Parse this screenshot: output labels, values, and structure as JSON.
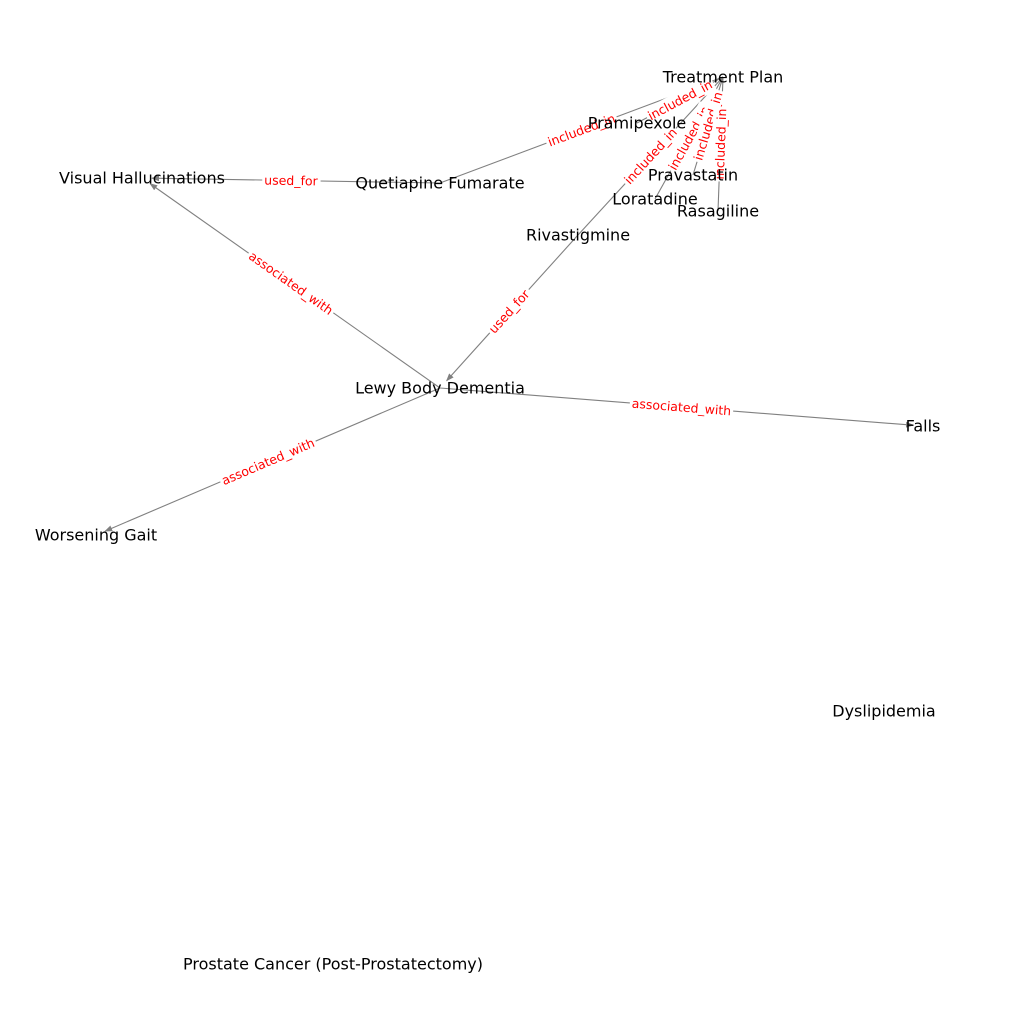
{
  "graph": {
    "nodes": [
      {
        "id": "treatment_plan",
        "label": "Treatment Plan"
      },
      {
        "id": "pramipexole",
        "label": "Pramipexole"
      },
      {
        "id": "visual_hallucinations",
        "label": "Visual Hallucinations"
      },
      {
        "id": "quetiapine",
        "label": "Quetiapine Fumarate"
      },
      {
        "id": "pravastatin",
        "label": "Pravastatin"
      },
      {
        "id": "loratadine",
        "label": "Loratadine"
      },
      {
        "id": "rasagiline",
        "label": "Rasagiline"
      },
      {
        "id": "rivastigmine",
        "label": "Rivastigmine"
      },
      {
        "id": "lewy_body_dementia",
        "label": "Lewy Body Dementia"
      },
      {
        "id": "falls",
        "label": "Falls"
      },
      {
        "id": "worsening_gait",
        "label": "Worsening Gait"
      },
      {
        "id": "dyslipidemia",
        "label": "Dyslipidemia"
      },
      {
        "id": "prostate_cancer",
        "label": "Prostate Cancer (Post-Prostatectomy)"
      }
    ],
    "edges": [
      {
        "source": "quetiapine",
        "target": "treatment_plan",
        "label": "included_in",
        "arrow": false
      },
      {
        "source": "pramipexole",
        "target": "treatment_plan",
        "label": "included_in",
        "arrow": false
      },
      {
        "source": "rivastigmine",
        "target": "treatment_plan",
        "label": "included_in",
        "arrow": false
      },
      {
        "source": "loratadine",
        "target": "treatment_plan",
        "label": "included_in",
        "arrow": false
      },
      {
        "source": "pravastatin",
        "target": "treatment_plan",
        "label": "included_in",
        "arrow": false
      },
      {
        "source": "rasagiline",
        "target": "treatment_plan",
        "label": "included_in",
        "arrow": false
      },
      {
        "source": "quetiapine",
        "target": "visual_hallucinations",
        "label": "used_for",
        "arrow": true
      },
      {
        "source": "rivastigmine",
        "target": "lewy_body_dementia",
        "label": "used_for",
        "arrow": true
      },
      {
        "source": "lewy_body_dementia",
        "target": "visual_hallucinations",
        "label": "associated_with",
        "arrow": true
      },
      {
        "source": "lewy_body_dementia",
        "target": "falls",
        "label": "associated_with",
        "arrow": true
      },
      {
        "source": "lewy_body_dementia",
        "target": "worsening_gait",
        "label": "associated_with",
        "arrow": true
      }
    ]
  },
  "colors": {
    "edge": "#808080",
    "edge_label": "#ff0000",
    "node_label": "#000000",
    "background": "#ffffff"
  }
}
